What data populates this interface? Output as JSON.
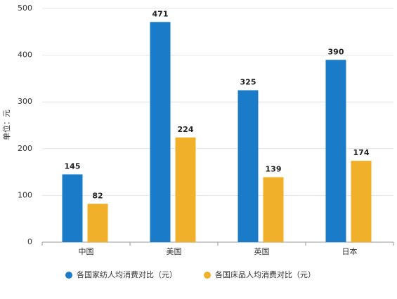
{
  "chart_data": {
    "type": "bar",
    "y_label": "单位：元",
    "categories": [
      "中国",
      "美国",
      "英国",
      "日本"
    ],
    "series": [
      {
        "name": "各国家纺人均消费对比（元）",
        "color": "#1a7cc9",
        "values": [
          145,
          471,
          325,
          390
        ]
      },
      {
        "name": "各国床品人均消费对比（元）",
        "color": "#f0b02a",
        "values": [
          82,
          224,
          139,
          174
        ]
      }
    ],
    "ylim": [
      0,
      500
    ],
    "yticks": [
      0,
      100,
      200,
      300,
      400,
      500
    ],
    "grid": true,
    "legend": "bottom"
  }
}
